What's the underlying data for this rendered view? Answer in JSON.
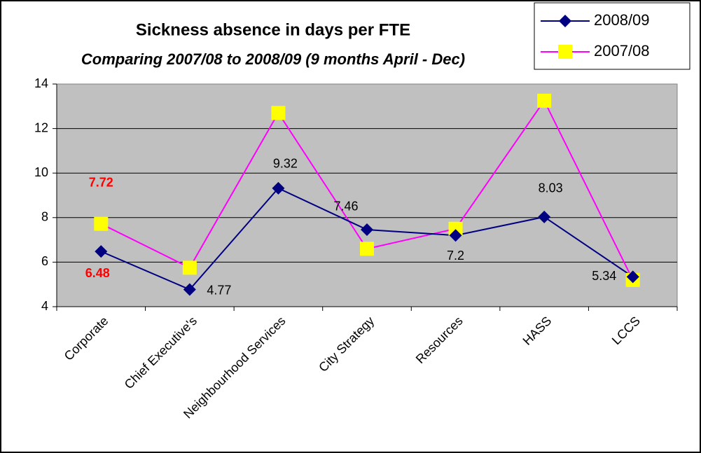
{
  "chart_data": {
    "type": "line",
    "title": "Sickness absence in days per FTE",
    "subtitle": "Comparing 2007/08 to 2008/09 (9 months April - Dec)",
    "categories": [
      "Corporate",
      "Chief Executive's",
      "Neighbourhood Services",
      "City Strategy",
      "Resources",
      "HASS",
      "LCCS"
    ],
    "series": [
      {
        "name": "2008/09",
        "color": "#000080",
        "marker": "diamond",
        "marker_color": "#000080",
        "values": [
          6.48,
          4.77,
          9.32,
          7.46,
          7.2,
          8.03,
          5.34
        ],
        "value_labels": [
          "6.48",
          "4.77",
          "9.32",
          "7.46",
          "7.2",
          "8.03",
          "5.34"
        ],
        "label_colors": [
          "#ff0000",
          "#000000",
          "#000000",
          "#000000",
          "#000000",
          "#000000",
          "#000000"
        ]
      },
      {
        "name": "2007/08",
        "color": "#ff00ff",
        "marker": "square",
        "marker_color": "#ffff00",
        "values": [
          7.72,
          5.75,
          12.7,
          6.6,
          7.5,
          13.25,
          5.2
        ],
        "value_labels": [
          "7.72",
          null,
          null,
          null,
          null,
          null,
          null
        ],
        "label_colors": [
          "#ff0000",
          null,
          null,
          null,
          null,
          null,
          null
        ]
      }
    ],
    "ylim": [
      4,
      14
    ],
    "yticks": [
      4,
      6,
      8,
      10,
      12,
      14
    ],
    "grid": true,
    "plot_background": "#c0c0c0",
    "legend": "top-right"
  }
}
